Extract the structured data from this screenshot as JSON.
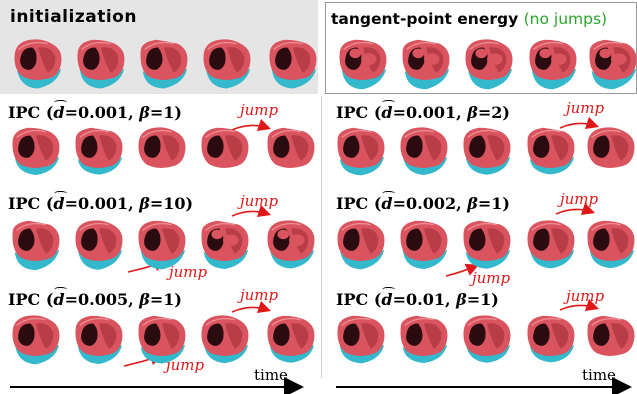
{
  "panels": {
    "init": {
      "title": "initialization"
    },
    "tpe": {
      "title": "tangent-point energy",
      "note": "(no jumps)"
    }
  },
  "rows": [
    {
      "prefix": "IPC (",
      "hat": "d",
      "d_value": "=0.001, ",
      "beta_sym": "β",
      "beta_value": "=1)"
    },
    {
      "prefix": "IPC (",
      "hat": "d",
      "d_value": "=0.001, ",
      "beta_sym": "β",
      "beta_value": "=2)"
    },
    {
      "prefix": "IPC (",
      "hat": "d",
      "d_value": "=0.001, ",
      "beta_sym": "β",
      "beta_value": "=10)"
    },
    {
      "prefix": "IPC (",
      "hat": "d",
      "d_value": "=0.002, ",
      "beta_sym": "β",
      "beta_value": "=1)"
    },
    {
      "prefix": "IPC (",
      "hat": "d",
      "d_value": "=0.005, ",
      "beta_sym": "β",
      "beta_value": "=1)"
    },
    {
      "prefix": "IPC (",
      "hat": "d",
      "d_value": "=0.01, ",
      "beta_sym": "β",
      "beta_value": "=1)"
    }
  ],
  "jump_label": "jump",
  "time_label": "time",
  "colors": {
    "surface": "#d9545e",
    "surface_dark": "#9c2a34",
    "interior": "#2a0c10",
    "base": "#33b8cc",
    "jump": "#e01818",
    "accent": "#2aa52a"
  }
}
